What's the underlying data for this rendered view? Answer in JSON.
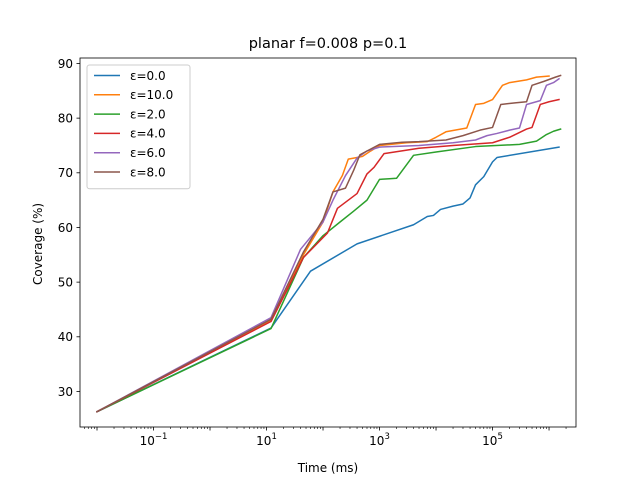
{
  "chart_data": {
    "type": "line",
    "title": "planar f=0.008 p=0.1",
    "xlabel": "Time (ms)",
    "ylabel": "Coverage (%)",
    "xscale": "log",
    "xlim": [
      0.005,
      3000000
    ],
    "ylim": [
      23.5,
      91
    ],
    "x_ticks": [
      {
        "value": 0.1,
        "label": "10",
        "exp": "−1"
      },
      {
        "value": 10,
        "label": "10",
        "exp": "1"
      },
      {
        "value": 1000,
        "label": "10",
        "exp": "3"
      },
      {
        "value": 100000,
        "label": "10",
        "exp": "5"
      }
    ],
    "y_ticks": [
      30,
      40,
      50,
      60,
      70,
      80,
      90
    ],
    "grid": false,
    "legend_position": "top-left",
    "series": [
      {
        "name": "ε=0.0",
        "color": "#1f77b4",
        "points": [
          [
            0.01,
            26.3
          ],
          [
            12,
            41.6
          ],
          [
            60,
            52.0
          ],
          [
            400,
            57.0
          ],
          [
            4000,
            60.5
          ],
          [
            7000,
            62.0
          ],
          [
            9000,
            62.2
          ],
          [
            12000,
            63.3
          ],
          [
            20000,
            63.9
          ],
          [
            30000,
            64.3
          ],
          [
            40000,
            65.4
          ],
          [
            50000,
            67.8
          ],
          [
            70000,
            69.3
          ],
          [
            100000,
            72.0
          ],
          [
            120000,
            72.8
          ],
          [
            1500000,
            74.7
          ]
        ]
      },
      {
        "name": "ε=10.0",
        "color": "#ff7f0e",
        "points": [
          [
            0.01,
            26.3
          ],
          [
            12,
            43.0
          ],
          [
            45,
            55.0
          ],
          [
            100,
            61.0
          ],
          [
            150,
            66.5
          ],
          [
            220,
            69.5
          ],
          [
            280,
            72.5
          ],
          [
            400,
            72.8
          ],
          [
            500,
            73.0
          ],
          [
            700,
            74.0
          ],
          [
            1000,
            75.0
          ],
          [
            3000,
            75.5
          ],
          [
            7000,
            75.7
          ],
          [
            10000,
            76.5
          ],
          [
            15000,
            77.5
          ],
          [
            35000,
            78.2
          ],
          [
            50000,
            82.5
          ],
          [
            70000,
            82.7
          ],
          [
            100000,
            83.4
          ],
          [
            150000,
            86.0
          ],
          [
            200000,
            86.5
          ],
          [
            400000,
            87.0
          ],
          [
            600000,
            87.5
          ],
          [
            1000000,
            87.7
          ]
        ]
      },
      {
        "name": "ε=2.0",
        "color": "#2ca02c",
        "points": [
          [
            0.01,
            26.3
          ],
          [
            12,
            41.5
          ],
          [
            45,
            54.5
          ],
          [
            100,
            58.5
          ],
          [
            200,
            61.0
          ],
          [
            350,
            63.0
          ],
          [
            600,
            65.0
          ],
          [
            1000,
            68.8
          ],
          [
            1500,
            68.9
          ],
          [
            2000,
            69.0
          ],
          [
            4000,
            73.2
          ],
          [
            10000,
            73.8
          ],
          [
            50000,
            74.8
          ],
          [
            300000,
            75.2
          ],
          [
            600000,
            75.8
          ],
          [
            900000,
            77.0
          ],
          [
            1200000,
            77.6
          ],
          [
            1600000,
            78.0
          ]
        ]
      },
      {
        "name": "ε=4.0",
        "color": "#d62728",
        "points": [
          [
            0.01,
            26.3
          ],
          [
            12,
            42.8
          ],
          [
            45,
            54.5
          ],
          [
            120,
            59.0
          ],
          [
            180,
            63.5
          ],
          [
            400,
            66.2
          ],
          [
            600,
            69.8
          ],
          [
            800,
            71.0
          ],
          [
            1200,
            73.5
          ],
          [
            5000,
            74.5
          ],
          [
            20000,
            75.0
          ],
          [
            100000,
            75.5
          ],
          [
            200000,
            76.5
          ],
          [
            400000,
            78.0
          ],
          [
            500000,
            78.3
          ],
          [
            700000,
            82.5
          ],
          [
            1000000,
            83.0
          ],
          [
            1500000,
            83.4
          ]
        ]
      },
      {
        "name": "ε=6.0",
        "color": "#9467bd",
        "points": [
          [
            0.01,
            26.3
          ],
          [
            12,
            43.5
          ],
          [
            40,
            56.0
          ],
          [
            100,
            61.0
          ],
          [
            150,
            65.0
          ],
          [
            250,
            69.5
          ],
          [
            400,
            72.7
          ],
          [
            600,
            74.0
          ],
          [
            1000,
            74.7
          ],
          [
            5000,
            75.0
          ],
          [
            20000,
            75.5
          ],
          [
            50000,
            76.0
          ],
          [
            80000,
            76.8
          ],
          [
            120000,
            77.2
          ],
          [
            200000,
            77.8
          ],
          [
            300000,
            78.2
          ],
          [
            400000,
            82.5
          ],
          [
            700000,
            83.2
          ],
          [
            900000,
            86.0
          ],
          [
            1200000,
            86.5
          ],
          [
            1500000,
            87.2
          ]
        ]
      },
      {
        "name": "ε=8.0",
        "color": "#8c564b",
        "points": [
          [
            0.01,
            26.3
          ],
          [
            12,
            43.2
          ],
          [
            45,
            55.5
          ],
          [
            100,
            61.5
          ],
          [
            150,
            66.5
          ],
          [
            250,
            67.2
          ],
          [
            350,
            70.5
          ],
          [
            450,
            73.3
          ],
          [
            1000,
            75.2
          ],
          [
            2500,
            75.6
          ],
          [
            5000,
            75.7
          ],
          [
            15000,
            76.0
          ],
          [
            30000,
            76.8
          ],
          [
            60000,
            77.8
          ],
          [
            100000,
            78.3
          ],
          [
            140000,
            82.5
          ],
          [
            250000,
            82.8
          ],
          [
            400000,
            83.0
          ],
          [
            500000,
            86.0
          ],
          [
            800000,
            86.7
          ],
          [
            1300000,
            87.5
          ],
          [
            1600000,
            87.8
          ]
        ]
      }
    ]
  }
}
